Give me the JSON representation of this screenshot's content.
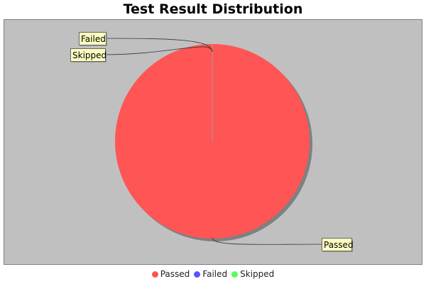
{
  "chart_data": {
    "type": "pie",
    "title": "Test Result Distribution",
    "categories": [
      "Passed",
      "Failed",
      "Skipped"
    ],
    "values": [
      100,
      0,
      0
    ],
    "colors": [
      "#ff5555",
      "#5555ff",
      "#55ff55"
    ],
    "plot_background": "#c0c0c0",
    "label_background": "#ffffc0",
    "legend_position": "bottom"
  }
}
